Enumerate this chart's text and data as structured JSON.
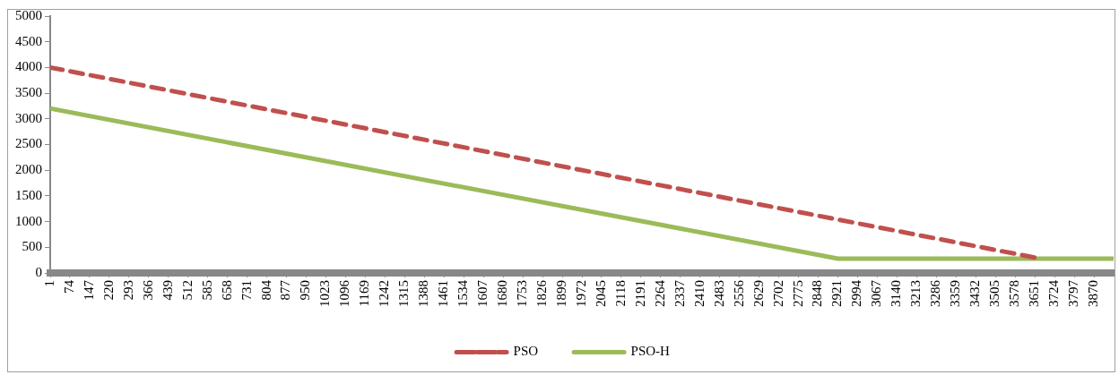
{
  "chart_data": {
    "type": "line",
    "series": [
      {
        "name": "PSO",
        "color": "#c0504d",
        "line_style": "dashed",
        "x": [
          1,
          3651
        ],
        "values": [
          4000,
          300
        ]
      },
      {
        "name": "PSO-H",
        "color": "#9bbb59",
        "line_style": "solid",
        "x": [
          1,
          2921,
          3943
        ],
        "values": [
          3200,
          280,
          280
        ]
      }
    ],
    "xlim": [
      1,
      3943
    ],
    "xticks": [
      1,
      74,
      147,
      220,
      293,
      366,
      439,
      512,
      585,
      658,
      731,
      804,
      877,
      950,
      1023,
      1096,
      1169,
      1242,
      1315,
      1388,
      1461,
      1534,
      1607,
      1680,
      1753,
      1826,
      1899,
      1972,
      2045,
      2118,
      2191,
      2264,
      2337,
      2410,
      2483,
      2556,
      2629,
      2702,
      2775,
      2848,
      2921,
      2994,
      3067,
      3140,
      3213,
      3286,
      3359,
      3432,
      3505,
      3578,
      3651,
      3724,
      3797,
      3870
    ],
    "ylim": [
      0,
      5000
    ],
    "yticks": [
      0,
      500,
      1000,
      1500,
      2000,
      2500,
      3000,
      3500,
      4000,
      4500,
      5000
    ],
    "grid": false,
    "legend": "bottom",
    "marker": "none"
  }
}
